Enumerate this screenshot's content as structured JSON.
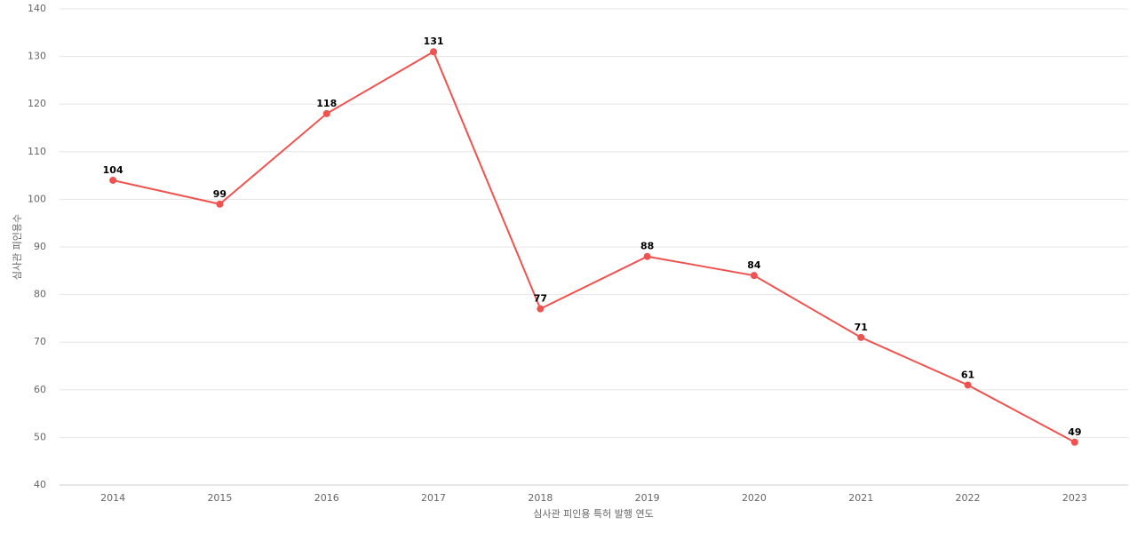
{
  "chart_data": {
    "type": "line",
    "x_label": "심사관 피인용 특허 발행 연도",
    "y_label": "심사관 피인용수",
    "categories": [
      "2014",
      "2015",
      "2016",
      "2017",
      "2018",
      "2019",
      "2020",
      "2021",
      "2022",
      "2023"
    ],
    "series": [
      {
        "name": "심사관 피인용수",
        "color": "#ef5350",
        "values": [
          104,
          99,
          118,
          131,
          77,
          88,
          84,
          71,
          61,
          49
        ]
      }
    ],
    "ylim": [
      40,
      140
    ],
    "yticks": [
      40,
      50,
      60,
      70,
      80,
      90,
      100,
      110,
      120,
      130,
      140
    ],
    "grid": true
  }
}
